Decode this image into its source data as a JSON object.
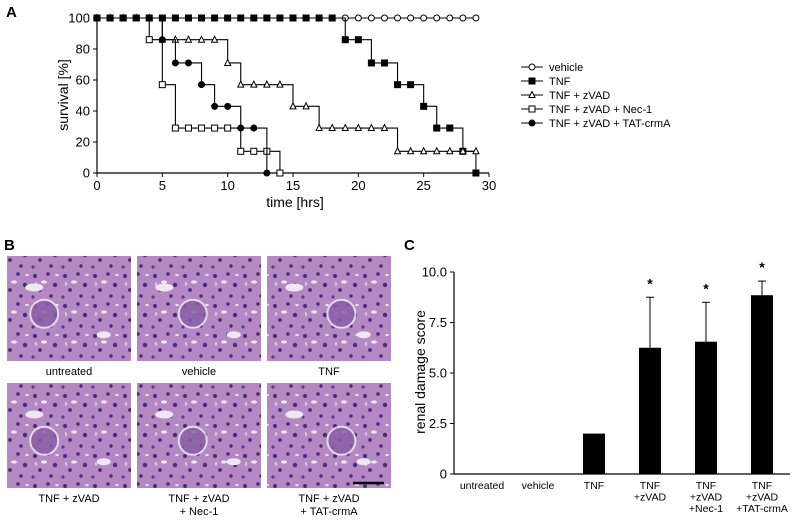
{
  "panels": {
    "a": "A",
    "b": "B",
    "c": "C"
  },
  "chart_data": [
    {
      "type": "line",
      "panel": "A",
      "title": "",
      "xlabel": "time [hrs]",
      "ylabel": "survival [%]",
      "xlim": [
        0,
        30
      ],
      "ylim": [
        0,
        100
      ],
      "xticks": [
        "0",
        "5",
        "10",
        "15",
        "20",
        "25",
        "30"
      ],
      "yticks": [
        "0",
        "20",
        "40",
        "60",
        "80",
        "100"
      ],
      "grid": false,
      "legend_position": "right",
      "step": true,
      "series": [
        {
          "name": "vehicle",
          "marker": "open-circle",
          "x": [
            0,
            1,
            2,
            3,
            4,
            5,
            6,
            7,
            8,
            9,
            10,
            11,
            12,
            13,
            14,
            15,
            16,
            17,
            18,
            19,
            20,
            21,
            22,
            23,
            24,
            25,
            26,
            27,
            28,
            29
          ],
          "y": [
            100,
            100,
            100,
            100,
            100,
            100,
            100,
            100,
            100,
            100,
            100,
            100,
            100,
            100,
            100,
            100,
            100,
            100,
            100,
            100,
            100,
            100,
            100,
            100,
            100,
            100,
            100,
            100,
            100,
            100
          ]
        },
        {
          "name": "TNF",
          "marker": "filled-square",
          "x": [
            0,
            1,
            2,
            3,
            4,
            5,
            6,
            7,
            8,
            9,
            10,
            11,
            12,
            13,
            14,
            15,
            16,
            17,
            18,
            19,
            20,
            21,
            22,
            23,
            24,
            25,
            26,
            27,
            28,
            29
          ],
          "y": [
            100,
            100,
            100,
            100,
            100,
            100,
            100,
            100,
            100,
            100,
            100,
            100,
            100,
            100,
            100,
            100,
            100,
            100,
            100,
            86,
            86,
            71,
            71,
            57,
            57,
            43,
            29,
            29,
            14,
            0
          ]
        },
        {
          "name": "TNF + zVAD",
          "marker": "open-triangle",
          "x": [
            0,
            1,
            2,
            3,
            4,
            5,
            6,
            7,
            8,
            9,
            10,
            11,
            12,
            13,
            14,
            15,
            16,
            17,
            18,
            19,
            20,
            21,
            22,
            23,
            24,
            25,
            26,
            27,
            28,
            29
          ],
          "y": [
            100,
            100,
            100,
            100,
            100,
            86,
            86,
            86,
            86,
            86,
            71,
            57,
            57,
            57,
            57,
            43,
            43,
            29,
            29,
            29,
            29,
            29,
            29,
            14,
            14,
            14,
            14,
            14,
            14,
            14
          ]
        },
        {
          "name": "TNF + zVAD + Nec-1",
          "marker": "open-square",
          "x": [
            0,
            1,
            2,
            3,
            4,
            5,
            6,
            7,
            8,
            9,
            10,
            11,
            12,
            13,
            14
          ],
          "y": [
            100,
            100,
            100,
            100,
            86,
            57,
            29,
            29,
            29,
            29,
            29,
            14,
            14,
            14,
            0
          ]
        },
        {
          "name": "TNF + zVAD + TAT-crmA",
          "marker": "filled-circle",
          "x": [
            0,
            1,
            2,
            3,
            4,
            5,
            6,
            7,
            8,
            9,
            10,
            11,
            12,
            13
          ],
          "y": [
            100,
            100,
            100,
            100,
            100,
            86,
            71,
            71,
            57,
            43,
            43,
            29,
            29,
            0
          ]
        }
      ]
    },
    {
      "type": "bar",
      "panel": "C",
      "title": "",
      "xlabel": "",
      "ylabel": "renal damage score",
      "ylim": [
        0,
        10
      ],
      "yticks": [
        "0",
        "2.5",
        "5.0",
        "7.5",
        "10.0"
      ],
      "grid": false,
      "categories": [
        "untreated",
        "vehicle",
        "TNF",
        "TNF +zVAD",
        "TNF +zVAD +Nec-1",
        "TNF +zVAD +TAT-crmA"
      ],
      "category_lines": [
        [
          "untreated"
        ],
        [
          "vehicle"
        ],
        [
          "TNF"
        ],
        [
          "TNF",
          "+zVAD"
        ],
        [
          "TNF",
          "+zVAD",
          "+Nec-1"
        ],
        [
          "TNF",
          "+zVAD",
          "+TAT-crmA"
        ]
      ],
      "values": [
        0,
        0,
        2.0,
        6.25,
        6.55,
        8.85
      ],
      "error": [
        0,
        0,
        0,
        2.5,
        1.95,
        0.7
      ],
      "significance": [
        "",
        "",
        "",
        "*",
        "*",
        "*"
      ]
    }
  ],
  "micrographs": {
    "labels": [
      "untreated",
      "vehicle",
      "TNF",
      "TNF + zVAD",
      "TNF + zVAD + Nec-1",
      "TNF + zVAD + TAT-crmA"
    ],
    "label_lines": [
      [
        "untreated"
      ],
      [
        "vehicle"
      ],
      [
        "TNF"
      ],
      [
        "TNF + zVAD"
      ],
      [
        "TNF + zVAD",
        "+ Nec-1"
      ],
      [
        "TNF + zVAD",
        "+ TAT-crmA"
      ]
    ],
    "colors": {
      "tissue": "#b488c2",
      "nuclei": "#4a2b78",
      "lumen": "#efe7f3",
      "dark": "#8a5ea6"
    }
  }
}
